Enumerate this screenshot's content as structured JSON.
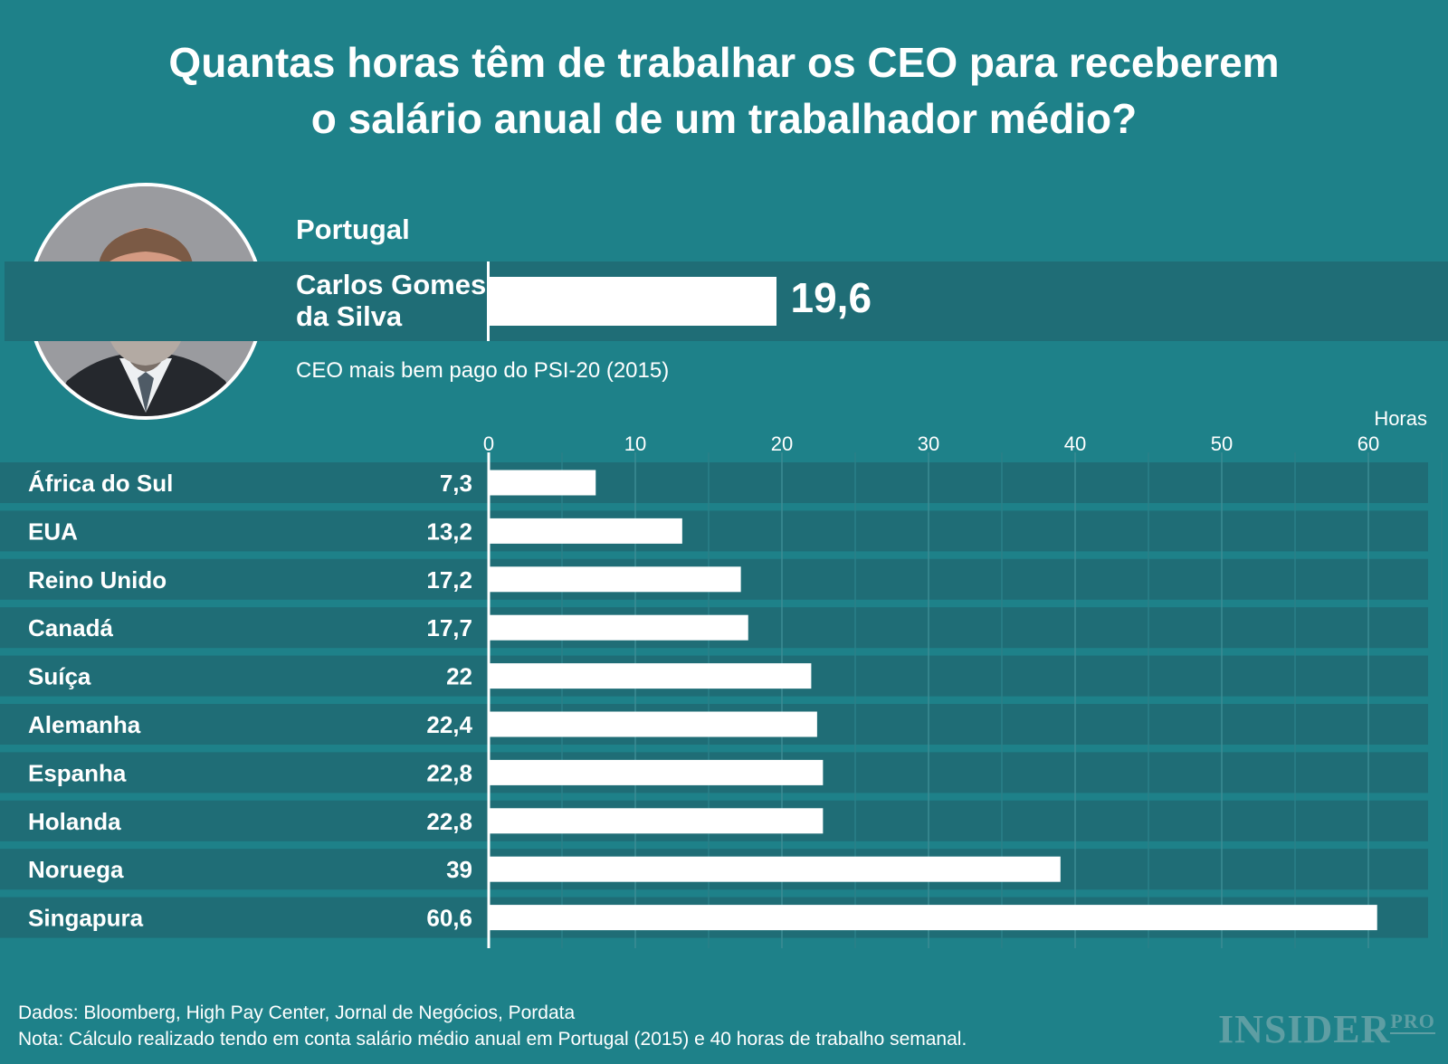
{
  "title_line1": "Quantas horas têm de trabalhar os CEO para receberem",
  "title_line2": "o salário anual de um trabalhador médio?",
  "portugal": {
    "country": "Portugal",
    "name_line1": "Carlos Gomes",
    "name_line2": "da Silva",
    "value": 19.6,
    "value_label": "19,6",
    "note": "CEO mais bem pago do PSI-20 (2015)"
  },
  "chart_data": {
    "type": "bar",
    "orientation": "horizontal",
    "xlabel": "Horas",
    "xlim": [
      0,
      65
    ],
    "ticks": [
      0,
      10,
      20,
      30,
      40,
      50,
      60
    ],
    "grid": true,
    "categories": [
      "África do Sul",
      "EUA",
      "Reino Unido",
      "Canadá",
      "Suíça",
      "Alemanha",
      "Espanha",
      "Holanda",
      "Noruega",
      "Singapura"
    ],
    "values": [
      7.3,
      13.2,
      17.2,
      17.7,
      22,
      22.4,
      22.8,
      22.8,
      39,
      60.6
    ],
    "value_labels": [
      "7,3",
      "13,2",
      "17,2",
      "17,7",
      "22",
      "22,4",
      "22,8",
      "22,8",
      "39",
      "60,6"
    ]
  },
  "footer": {
    "source": "Dados: Bloomberg, High Pay Center, Jornal de Negócios, Pordata",
    "note": "Nota: Cálculo realizado tendo em conta salário médio anual em Portugal (2015) e 40 horas de trabalho semanal."
  },
  "logo": {
    "main": "INSIDER",
    "sup": "PRO"
  },
  "colors": {
    "background": "#1e8189",
    "row_band": "#1f6d76",
    "bar": "#ffffff",
    "logo": "#5e9ea3"
  }
}
